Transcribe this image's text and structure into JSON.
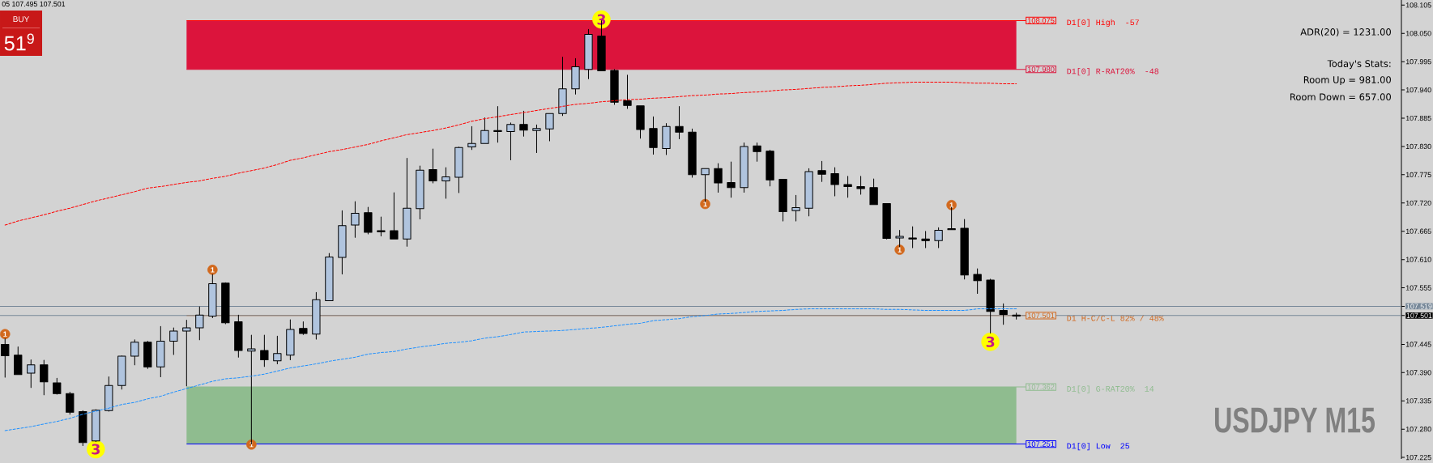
{
  "chart_data": {
    "type": "candlestick",
    "title": "USDJPY M15",
    "annotations": [
      "05 107.495 107.501",
      "BUY",
      "51$^{9}$",
      "ADR(20) = 1231.00",
      "Today's Stats:",
      "Room Up = 981.00",
      "Room Down = 657.00",
      "108.075",
      "107.980",
      "107.501",
      "107.362",
      "107.251"
    ],
    "categories": [
      null,
      null,
      null,
      null,
      null,
      null,
      null,
      null,
      null,
      null,
      null,
      null,
      null,
      null,
      null,
      null,
      null,
      null,
      null,
      null,
      null,
      null,
      null,
      null,
      null,
      null,
      null,
      null,
      null,
      null,
      null,
      null,
      null,
      null,
      null,
      null,
      null,
      null,
      null,
      null,
      null,
      null,
      null,
      null,
      null,
      null,
      null,
      null,
      null,
      null,
      null,
      null,
      null,
      null,
      null,
      null,
      null,
      null,
      null,
      null,
      null,
      null,
      null,
      null,
      null,
      null,
      null,
      null,
      null,
      null,
      null,
      null,
      null,
      null,
      null,
      null,
      null,
      null,
      null
    ],
    "ohlc": [
      [
        107.445,
        107.456,
        107.381,
        107.423
      ],
      [
        107.424,
        107.44,
        107.386,
        107.386
      ],
      [
        107.389,
        107.415,
        107.361,
        107.405
      ],
      [
        107.405,
        107.414,
        107.347,
        107.372
      ],
      [
        107.37,
        107.379,
        107.348,
        107.349
      ],
      [
        107.349,
        107.352,
        107.309,
        107.313
      ],
      [
        107.314,
        107.316,
        107.248,
        107.254
      ],
      [
        107.257,
        107.318,
        107.256,
        107.317
      ],
      [
        107.316,
        107.382,
        107.315,
        107.365
      ],
      [
        107.365,
        107.423,
        107.358,
        107.422
      ],
      [
        107.422,
        107.454,
        107.405,
        107.449
      ],
      [
        107.449,
        107.451,
        107.398,
        107.401
      ],
      [
        107.401,
        107.48,
        107.382,
        107.451
      ],
      [
        107.451,
        107.477,
        107.425,
        107.471
      ],
      [
        107.471,
        107.492,
        107.364,
        107.477
      ],
      [
        107.477,
        107.518,
        107.454,
        107.502
      ],
      [
        107.5,
        107.581,
        107.497,
        107.563
      ],
      [
        107.564,
        107.565,
        107.485,
        107.487
      ],
      [
        107.489,
        107.502,
        107.42,
        107.433
      ],
      [
        107.432,
        107.463,
        107.251,
        107.436
      ],
      [
        107.433,
        107.463,
        107.402,
        107.415
      ],
      [
        107.413,
        107.461,
        107.407,
        107.427
      ],
      [
        107.424,
        107.493,
        107.415,
        107.474
      ],
      [
        107.476,
        107.489,
        107.464,
        107.466
      ],
      [
        107.465,
        107.546,
        107.455,
        107.532
      ],
      [
        107.53,
        107.622,
        107.53,
        107.615
      ],
      [
        107.614,
        107.705,
        107.582,
        107.676
      ],
      [
        107.677,
        107.723,
        107.653,
        107.7
      ],
      [
        107.701,
        107.712,
        107.66,
        107.663
      ],
      [
        107.665,
        107.693,
        107.656,
        107.665
      ],
      [
        107.666,
        107.74,
        107.65,
        107.65
      ],
      [
        107.65,
        107.807,
        107.636,
        107.71
      ],
      [
        107.709,
        107.792,
        107.689,
        107.784
      ],
      [
        107.785,
        107.825,
        107.759,
        107.763
      ],
      [
        107.763,
        107.789,
        107.729,
        107.771
      ],
      [
        107.77,
        107.829,
        107.74,
        107.828
      ],
      [
        107.829,
        107.869,
        107.824,
        107.836
      ],
      [
        107.836,
        107.886,
        107.836,
        107.861
      ],
      [
        107.86,
        107.908,
        107.838,
        107.86
      ],
      [
        107.859,
        107.876,
        107.804,
        107.873
      ],
      [
        107.873,
        107.899,
        107.85,
        107.862
      ],
      [
        107.861,
        107.872,
        107.818,
        107.865
      ],
      [
        107.864,
        107.894,
        107.841,
        107.894
      ],
      [
        107.894,
        108.004,
        107.89,
        107.942
      ],
      [
        107.942,
        108.001,
        107.932,
        107.985
      ],
      [
        107.98,
        108.058,
        107.962,
        108.048
      ],
      [
        108.045,
        108.075,
        107.977,
        107.977
      ],
      [
        107.978,
        107.98,
        107.912,
        107.916
      ],
      [
        107.919,
        107.969,
        107.904,
        107.91
      ],
      [
        107.909,
        107.909,
        107.846,
        107.863
      ],
      [
        107.865,
        107.888,
        107.815,
        107.828
      ],
      [
        107.826,
        107.875,
        107.814,
        107.869
      ],
      [
        107.869,
        107.908,
        107.845,
        107.858
      ],
      [
        107.858,
        107.864,
        107.77,
        107.775
      ],
      [
        107.775,
        107.787,
        107.723,
        107.787
      ],
      [
        107.787,
        107.797,
        107.741,
        107.759
      ],
      [
        107.76,
        107.8,
        107.731,
        107.75
      ],
      [
        107.75,
        107.837,
        107.741,
        107.83
      ],
      [
        107.831,
        107.837,
        107.801,
        107.82
      ],
      [
        107.821,
        107.823,
        107.753,
        107.765
      ],
      [
        107.766,
        107.766,
        107.685,
        107.703
      ],
      [
        107.705,
        107.735,
        107.685,
        107.711
      ],
      [
        107.71,
        107.787,
        107.695,
        107.781
      ],
      [
        107.783,
        107.801,
        107.762,
        107.776
      ],
      [
        107.777,
        107.789,
        107.734,
        107.756
      ],
      [
        107.756,
        107.772,
        107.731,
        107.752
      ],
      [
        107.752,
        107.772,
        107.737,
        107.748
      ],
      [
        107.75,
        107.767,
        107.717,
        107.717
      ],
      [
        107.719,
        107.719,
        107.65,
        107.651
      ],
      [
        107.652,
        107.667,
        107.635,
        107.655
      ],
      [
        107.652,
        107.674,
        107.633,
        107.65
      ],
      [
        107.65,
        107.665,
        107.633,
        107.647
      ],
      [
        107.647,
        107.672,
        107.633,
        107.667
      ],
      [
        107.67,
        107.712,
        107.668,
        107.668
      ],
      [
        107.671,
        107.688,
        107.572,
        107.58
      ],
      [
        107.581,
        107.592,
        107.544,
        107.569
      ],
      [
        107.57,
        107.572,
        107.467,
        107.509
      ],
      [
        107.511,
        107.524,
        107.484,
        107.503
      ],
      [
        107.501,
        107.506,
        107.494,
        107.501
      ]
    ],
    "colors": [
      "#000000",
      "#000000",
      "#b0c4de",
      "#000000",
      "#000000",
      "#000000",
      "#000000",
      "#b0c4de",
      "#b0c4de",
      "#b0c4de",
      "#b0c4de",
      "#000000",
      "#b0c4de",
      "#b0c4de",
      "#b0c4de",
      "#b0c4de",
      "#b0c4de",
      "#000000",
      "#000000",
      "#b0c4de",
      "#000000",
      "#b0c4de",
      "#b0c4de",
      "#000000",
      "#b0c4de",
      "#b0c4de",
      "#b0c4de",
      "#b0c4de",
      "#000000",
      "#000000",
      "#000000",
      "#b0c4de",
      "#b0c4de",
      "#000000",
      "#b0c4de",
      "#b0c4de",
      "#b0c4de",
      "#b0c4de",
      "#000000",
      "#b0c4de",
      "#000000",
      "#b0c4de",
      "#b0c4de",
      "#b0c4de",
      "#b0c4de",
      "#b0c4de",
      "#000000",
      "#000000",
      "#000000",
      "#000000",
      "#000000",
      "#b0c4de",
      "#000000",
      "#000000",
      "#b0c4de",
      "#000000",
      "#000000",
      "#b0c4de",
      "#000000",
      "#000000",
      "#000000",
      "#b0c4de",
      "#b0c4de",
      "#000000",
      "#000000",
      "#000000",
      "#000000",
      "#000000",
      "#000000",
      "#b0c4de",
      "#000000",
      "#000000",
      "#b0c4de",
      "#000000",
      "#000000",
      "#000000",
      "#000000",
      "#000000",
      "#000000"
    ],
    "series": [
      {
        "type": "line",
        "color": "#ff0000",
        "line_style": "dashed",
        "values": [
          107.677,
          107.685,
          107.691,
          107.697,
          107.704,
          107.71,
          107.717,
          107.724,
          107.73,
          107.736,
          107.742,
          107.749,
          107.752,
          107.756,
          107.76,
          107.763,
          107.768,
          107.772,
          107.778,
          107.783,
          107.788,
          107.795,
          107.803,
          107.808,
          107.814,
          107.82,
          107.824,
          107.829,
          107.834,
          107.841,
          107.847,
          107.853,
          107.857,
          107.861,
          107.866,
          107.872,
          107.879,
          107.884,
          107.888,
          107.892,
          107.896,
          107.9,
          107.904,
          107.908,
          107.912,
          107.914,
          107.917,
          107.919,
          107.921,
          107.922,
          107.924,
          107.925,
          107.927,
          107.929,
          107.93,
          107.932,
          107.933,
          107.935,
          107.936,
          107.938,
          107.94,
          107.941,
          107.943,
          107.945,
          107.946,
          107.948,
          107.949,
          107.951,
          107.953,
          107.954,
          107.955,
          107.955,
          107.955,
          107.955,
          107.954,
          107.953,
          107.953,
          107.952,
          107.952
        ]
      },
      {
        "type": "line",
        "color": "#1e90ff",
        "line_style": "dashed",
        "values": [
          107.277,
          107.281,
          107.285,
          107.29,
          107.295,
          107.301,
          107.309,
          107.315,
          107.321,
          107.328,
          107.332,
          107.339,
          107.344,
          107.352,
          107.359,
          107.366,
          107.373,
          107.378,
          107.38,
          107.383,
          107.387,
          107.393,
          107.399,
          107.403,
          107.407,
          107.412,
          107.416,
          107.42,
          107.426,
          107.429,
          107.431,
          107.436,
          107.44,
          107.443,
          107.447,
          107.449,
          107.452,
          107.457,
          107.46,
          107.464,
          107.469,
          107.47,
          107.471,
          107.472,
          107.474,
          107.476,
          107.478,
          107.481,
          107.484,
          107.486,
          107.491,
          107.493,
          107.495,
          107.499,
          107.501,
          107.504,
          107.505,
          107.507,
          107.509,
          107.51,
          107.511,
          107.513,
          107.514,
          107.514,
          107.514,
          107.514,
          107.514,
          107.514,
          107.513,
          107.513,
          107.512,
          107.511,
          107.511,
          107.511,
          107.511,
          107.514,
          107.514,
          107.514,
          107.514
        ]
      },
      {
        "type": "scatter",
        "name": "1",
        "color": "#d2691e",
        "marker": "circle",
        "values": [
          107.465,
          null,
          null,
          null,
          null,
          null,
          null,
          null,
          null,
          null,
          null,
          null,
          null,
          null,
          null,
          null,
          107.59,
          null,
          null,
          107.25,
          null,
          null,
          null,
          null,
          null,
          null,
          null,
          null,
          null,
          null,
          null,
          null,
          null,
          null,
          null,
          null,
          null,
          null,
          null,
          null,
          null,
          null,
          null,
          null,
          null,
          null,
          null,
          null,
          null,
          null,
          null,
          null,
          null,
          null,
          107.718,
          null,
          null,
          null,
          null,
          null,
          null,
          null,
          null,
          null,
          null,
          null,
          null,
          null,
          null,
          107.629,
          null,
          null,
          null,
          107.716,
          null,
          null,
          null,
          null,
          null
        ]
      },
      {
        "type": "scatter",
        "name": "3",
        "color": "#ffff00",
        "marker": "circle",
        "values": [
          null,
          null,
          null,
          null,
          null,
          null,
          null,
          107.241,
          null,
          null,
          null,
          null,
          null,
          null,
          null,
          null,
          null,
          null,
          null,
          null,
          null,
          null,
          null,
          null,
          null,
          null,
          null,
          null,
          null,
          null,
          null,
          null,
          null,
          null,
          null,
          null,
          null,
          null,
          null,
          null,
          null,
          null,
          null,
          null,
          null,
          null,
          108.077,
          null,
          null,
          null,
          null,
          null,
          null,
          null,
          null,
          null,
          null,
          null,
          null,
          null,
          null,
          null,
          null,
          null,
          null,
          null,
          null,
          null,
          null,
          null,
          null,
          null,
          null,
          null,
          null,
          null,
          107.45,
          null,
          null
        ]
      }
    ],
    "ylim": [
      107.222,
      108.115
    ],
    "yticks": [
      {
        "value": 107.225,
        "label": "107.225"
      },
      {
        "value": 107.28,
        "label": "107.280"
      },
      {
        "value": 107.335,
        "label": "107.335"
      },
      {
        "value": 107.39,
        "label": "107.390"
      },
      {
        "value": 107.445,
        "label": "107.445"
      },
      {
        "value": 107.501,
        "label": "107.501"
      },
      {
        "value": 107.519,
        "label": "107.519"
      },
      {
        "value": 107.555,
        "label": "107.555"
      },
      {
        "value": 107.61,
        "label": "107.610"
      },
      {
        "value": 107.665,
        "label": "107.665"
      },
      {
        "value": 107.72,
        "label": "107.720"
      },
      {
        "value": 107.775,
        "label": "107.775"
      },
      {
        "value": 107.83,
        "label": "107.830"
      },
      {
        "value": 107.885,
        "label": "107.885"
      },
      {
        "value": 107.94,
        "label": "107.940"
      },
      {
        "value": 107.995,
        "label": "107.995"
      },
      {
        "value": 108.05,
        "label": "108.050"
      },
      {
        "value": 108.105,
        "label": "108.105"
      }
    ],
    "tick_labels": "y",
    "bands": [
      {
        "axis": "y",
        "from": 107.98,
        "to": 108.075,
        "color": "#dc143c"
      },
      {
        "axis": "y",
        "from": 107.251,
        "to": 107.362,
        "color": "#8fbc8f"
      }
    ],
    "ref_lines": [
      {
        "axis": "y",
        "value": 108.075,
        "label": "D1[0] High  -57",
        "color": "#ff0000"
      },
      {
        "axis": "y",
        "value": 107.98,
        "label": "D1[0] R-RAT20%  -48",
        "color": "#dc143c"
      },
      {
        "axis": "y",
        "value": 107.501,
        "label": "D1 H-C/C-L 82% / 48%",
        "color": "#d2691e"
      },
      {
        "axis": "y",
        "value": 107.362,
        "label": "D1[0] G-RAT20%  14",
        "color": "#8fbc8f"
      },
      {
        "axis": "y",
        "value": 107.251,
        "label": "D1[0] Low  25",
        "color": "#0000ff"
      },
      {
        "axis": "y",
        "value": 107.519,
        "color": "#778899"
      },
      {
        "axis": "y",
        "value": 107.501,
        "color": "#778899"
      }
    ]
  }
}
